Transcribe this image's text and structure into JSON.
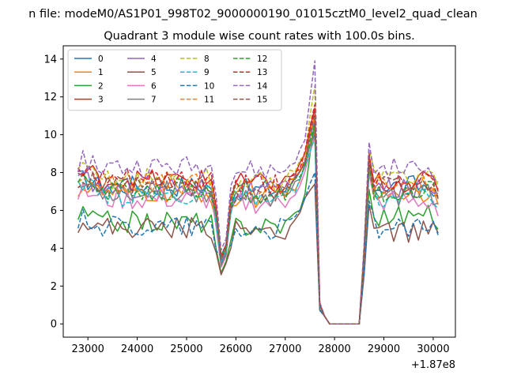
{
  "chart_data": {
    "type": "line",
    "suptitle": "n file: modeM0/AS1P01_998T02_9000000190_01015cztM0_level2_quad_clean",
    "title": "Quadrant 3 module wise count rates with 100.0s bins.",
    "xlabel": "",
    "ylabel": "",
    "x_offset_label": "+1.87e8",
    "xlim": [
      22500,
      30450
    ],
    "ylim": [
      -0.7,
      14.7
    ],
    "xticks": [
      23000,
      24000,
      25000,
      26000,
      27000,
      28000,
      29000,
      30000
    ],
    "yticks": [
      0,
      2,
      4,
      6,
      8,
      10,
      12,
      14
    ],
    "x": {
      "start": 22800,
      "step": 100,
      "count": 74
    },
    "legend": {
      "placement": "top-left",
      "columns": 4
    },
    "series": [
      {
        "name": "0",
        "color": "#1f77b4",
        "style": "solid",
        "level": 7.3,
        "pre_dip": 7.1,
        "dip": 3.2,
        "peak": 10.0,
        "post": 7.6,
        "last": 6.8
      },
      {
        "name": "1",
        "color": "#ff7f0e",
        "style": "solid",
        "level": 6.9,
        "pre_dip": 6.7,
        "dip": 3.0,
        "peak": 10.4,
        "post": 7.3,
        "last": 6.3
      },
      {
        "name": "2",
        "color": "#2ca02c",
        "style": "solid",
        "level": 5.4,
        "pre_dip": 5.0,
        "dip": 2.7,
        "peak": 10.8,
        "post": 6.0,
        "last": 5.0
      },
      {
        "name": "3",
        "color": "#d62728",
        "style": "solid",
        "level": 7.6,
        "pre_dip": 7.3,
        "dip": 3.4,
        "peak": 11.4,
        "post": 7.8,
        "last": 7.0
      },
      {
        "name": "4",
        "color": "#9467bd",
        "style": "solid",
        "level": 7.2,
        "pre_dip": 7.0,
        "dip": 3.3,
        "peak": 10.9,
        "post": 7.4,
        "last": 6.9
      },
      {
        "name": "5",
        "color": "#8c564b",
        "style": "solid",
        "level": 5.1,
        "pre_dip": 4.9,
        "dip": 2.6,
        "peak": 7.4,
        "post": 5.2,
        "last": 4.8
      },
      {
        "name": "6",
        "color": "#e377c2",
        "style": "solid",
        "level": 6.6,
        "pre_dip": 6.4,
        "dip": 3.0,
        "peak": 9.9,
        "post": 6.8,
        "last": 5.7
      },
      {
        "name": "7",
        "color": "#7f7f7f",
        "style": "solid",
        "level": 7.0,
        "pre_dip": 6.8,
        "dip": 3.1,
        "peak": 10.2,
        "post": 7.1,
        "last": 6.4
      },
      {
        "name": "8",
        "color": "#bcbd22",
        "style": "dashed",
        "level": 7.7,
        "pre_dip": 7.5,
        "dip": 3.5,
        "peak": 12.6,
        "post": 8.1,
        "last": 7.3
      },
      {
        "name": "9",
        "color": "#17becf",
        "style": "dashed",
        "level": 6.8,
        "pre_dip": 6.6,
        "dip": 3.3,
        "peak": 9.8,
        "post": 7.0,
        "last": 6.1
      },
      {
        "name": "10",
        "color": "#1f77b4",
        "style": "dashed",
        "level": 5.2,
        "pre_dip": 5.0,
        "dip": 3.6,
        "peak": 8.0,
        "post": 5.4,
        "last": 4.7
      },
      {
        "name": "11",
        "color": "#ff7f0e",
        "style": "dashed",
        "level": 7.4,
        "pre_dip": 7.2,
        "dip": 3.4,
        "peak": 11.0,
        "post": 7.7,
        "last": 6.7
      },
      {
        "name": "12",
        "color": "#2ca02c",
        "style": "dashed",
        "level": 7.1,
        "pre_dip": 6.9,
        "dip": 3.5,
        "peak": 10.6,
        "post": 7.3,
        "last": 6.6
      },
      {
        "name": "13",
        "color": "#d62728",
        "style": "dashed",
        "level": 7.6,
        "pre_dip": 7.4,
        "dip": 3.6,
        "peak": 11.6,
        "post": 7.9,
        "last": 7.1
      },
      {
        "name": "14",
        "color": "#9467bd",
        "style": "dashed",
        "level": 8.3,
        "pre_dip": 8.1,
        "dip": 3.9,
        "peak": 13.9,
        "post": 8.5,
        "last": 7.5
      },
      {
        "name": "15",
        "color": "#8c564b",
        "style": "dashed",
        "level": 7.2,
        "pre_dip": 7.0,
        "dip": 3.4,
        "peak": 11.2,
        "post": 7.5,
        "last": 6.6
      }
    ]
  }
}
